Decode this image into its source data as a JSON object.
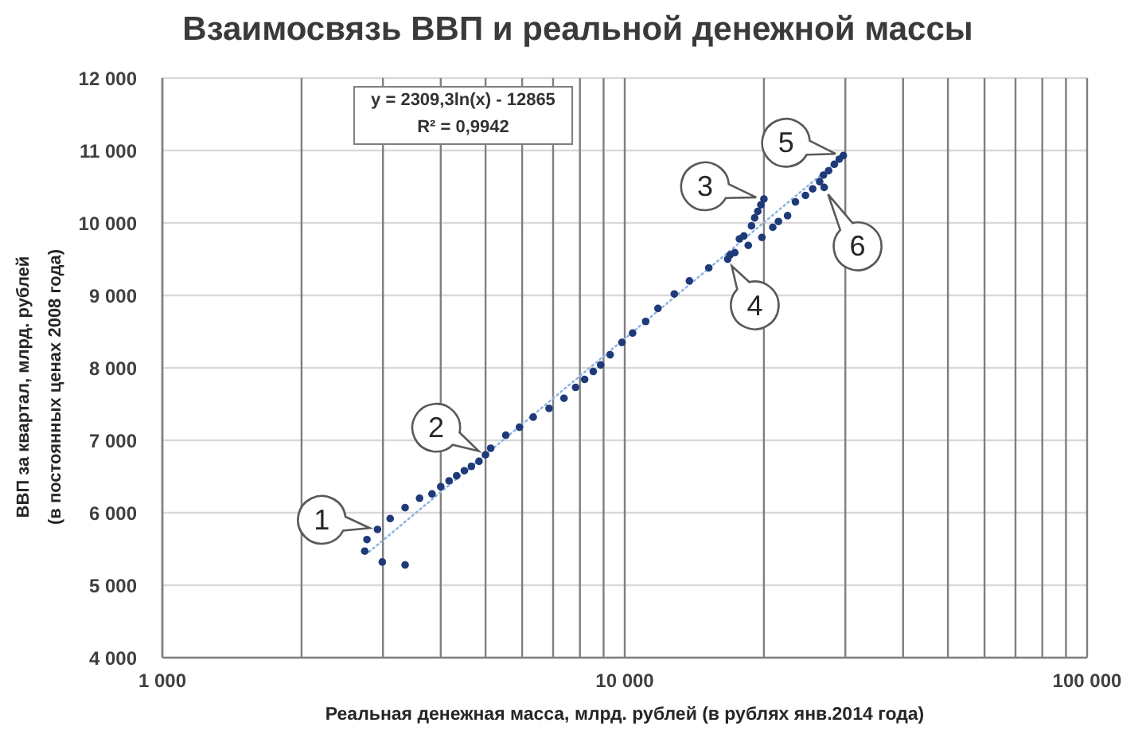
{
  "chart_data": {
    "type": "scatter",
    "title": "Взаимосвязь ВВП и реальной денежной массы",
    "xlabel": "Реальная денежная масса, млрд. рублей (в рублях янв.2014 года)",
    "ylabel": "ВВП за квартал, млрд. рублей\n(в постоянных ценах 2008 года)",
    "log": "x",
    "xlim": [
      1000,
      100000
    ],
    "xticks": [
      {
        "value": 1000,
        "label": "1 000"
      },
      {
        "value": 2000,
        "label": null
      },
      {
        "value": 3000,
        "label": null
      },
      {
        "value": 4000,
        "label": null
      },
      {
        "value": 5000,
        "label": null
      },
      {
        "value": 6000,
        "label": null
      },
      {
        "value": 7000,
        "label": null
      },
      {
        "value": 8000,
        "label": null
      },
      {
        "value": 9000,
        "label": null
      },
      {
        "value": 10000,
        "label": "10 000"
      },
      {
        "value": 20000,
        "label": null
      },
      {
        "value": 30000,
        "label": null
      },
      {
        "value": 40000,
        "label": null
      },
      {
        "value": 50000,
        "label": null
      },
      {
        "value": 60000,
        "label": null
      },
      {
        "value": 70000,
        "label": null
      },
      {
        "value": 80000,
        "label": null
      },
      {
        "value": 90000,
        "label": null
      },
      {
        "value": 100000,
        "label": "100 000"
      }
    ],
    "ylim": [
      4000,
      12000
    ],
    "yticks": [
      {
        "value": 4000,
        "label": "4 000"
      },
      {
        "value": 5000,
        "label": "5 000"
      },
      {
        "value": 6000,
        "label": "6 000"
      },
      {
        "value": 7000,
        "label": "7 000"
      },
      {
        "value": 8000,
        "label": "8 000"
      },
      {
        "value": 9000,
        "label": "9 000"
      },
      {
        "value": 10000,
        "label": "10 000"
      },
      {
        "value": 11000,
        "label": "11 000"
      },
      {
        "value": 12000,
        "label": "12 000"
      }
    ],
    "grid": true,
    "marker": "circle",
    "series": [
      {
        "type": "scatter",
        "color": "#1f3a78",
        "x": [
          2740,
          2770,
          2920,
          2990,
          3110,
          3350,
          3350,
          3600,
          3830,
          4000,
          4170,
          4330,
          4500,
          4660,
          4840,
          5000,
          5130,
          5530,
          5920,
          6340,
          6860,
          7390,
          7830,
          8190,
          8550,
          8870,
          9300,
          9860,
          10400,
          11100,
          11800,
          12800,
          13800,
          15200,
          16700,
          16900,
          17300,
          17700,
          18100,
          18500,
          18800,
          19100,
          19400,
          19700,
          20000,
          19800,
          20900,
          21500,
          22500,
          23400,
          24600,
          25500,
          26400,
          27000,
          26900,
          27600,
          28400,
          29100,
          29700
        ],
        "values": [
          5470,
          5630,
          5770,
          5320,
          5920,
          5280,
          6070,
          6200,
          6260,
          6360,
          6440,
          6510,
          6580,
          6640,
          6710,
          6800,
          6890,
          7070,
          7180,
          7320,
          7440,
          7580,
          7730,
          7840,
          7950,
          8040,
          8180,
          8350,
          8480,
          8640,
          8820,
          9020,
          9200,
          9380,
          9500,
          9560,
          9590,
          9780,
          9820,
          9690,
          9960,
          10070,
          10160,
          10250,
          10330,
          9800,
          9940,
          10020,
          10100,
          10290,
          10380,
          10470,
          10570,
          10490,
          10660,
          10720,
          10810,
          10880,
          10930
        ]
      },
      {
        "type": "line",
        "color": "#8fb4e3",
        "x": [
          2800,
          29700
        ],
        "values": [
          5460,
          10920
        ],
        "line_style": "dotted",
        "marker": "none"
      }
    ],
    "annotations": [
      "y = 2309,3ln(x) - 12865",
      "R² = 0,9942",
      {
        "text": "1",
        "x": 2920,
        "y": 5770
      },
      {
        "text": "2",
        "x": 5000,
        "y": 6800
      },
      {
        "text": "3",
        "x": 20000,
        "y": 10330
      },
      {
        "text": "4",
        "x": 16700,
        "y": 9500
      },
      {
        "text": "5",
        "x": 29700,
        "y": 10930
      },
      {
        "text": "6",
        "x": 27000,
        "y": 10490
      }
    ]
  }
}
